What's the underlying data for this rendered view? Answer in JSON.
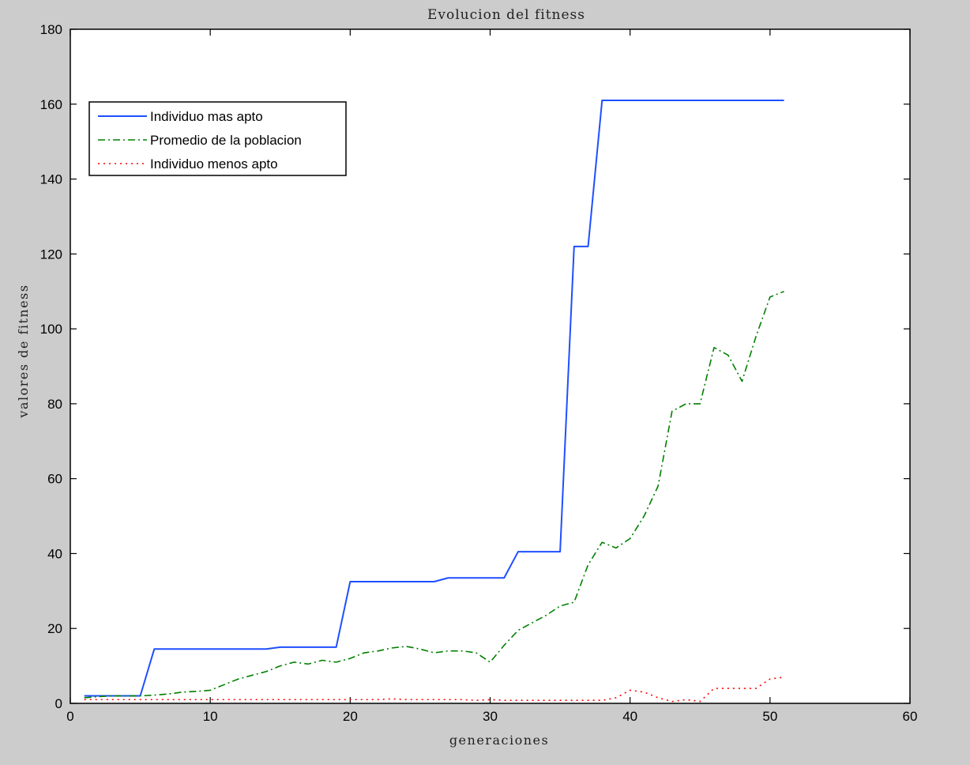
{
  "chart_data": {
    "type": "line",
    "title": "Evolucion del fitness",
    "xlabel": "generaciones",
    "ylabel": "valores de fitness",
    "xlim": [
      0,
      60
    ],
    "ylim": [
      0,
      180
    ],
    "xticks": [
      0,
      10,
      20,
      30,
      40,
      50,
      60
    ],
    "yticks": [
      0,
      20,
      40,
      60,
      80,
      100,
      120,
      140,
      160,
      180
    ],
    "grid": false,
    "legend_position": "top-left",
    "background_color": "#cccccc",
    "plot_background_color": "#ffffff",
    "series": [
      {
        "name": "Individuo mas apto",
        "color": "#1f4fff",
        "style": "solid",
        "x": [
          1,
          2,
          3,
          4,
          5,
          6,
          7,
          8,
          9,
          10,
          11,
          12,
          13,
          14,
          15,
          16,
          17,
          18,
          19,
          20,
          21,
          22,
          23,
          24,
          25,
          26,
          27,
          28,
          29,
          30,
          31,
          32,
          33,
          34,
          35,
          36,
          37,
          38,
          39,
          40,
          41,
          42,
          43,
          44,
          45,
          46,
          47,
          48,
          49,
          50,
          51
        ],
        "y": [
          2,
          2,
          2,
          2,
          2,
          14.5,
          14.5,
          14.5,
          14.5,
          14.5,
          14.5,
          14.5,
          14.5,
          14.5,
          15,
          15,
          15,
          15,
          15,
          32.5,
          32.5,
          32.5,
          32.5,
          32.5,
          32.5,
          32.5,
          33.5,
          33.5,
          33.5,
          33.5,
          33.5,
          40.5,
          40.5,
          40.5,
          40.5,
          122,
          122,
          161,
          161,
          161,
          161,
          161,
          161,
          161,
          161,
          161,
          161,
          161,
          161,
          161,
          161
        ]
      },
      {
        "name": "Promedio de la poblacion",
        "color": "#008000",
        "style": "dashdot",
        "x": [
          1,
          2,
          3,
          4,
          5,
          6,
          7,
          8,
          9,
          10,
          11,
          12,
          13,
          14,
          15,
          16,
          17,
          18,
          19,
          20,
          21,
          22,
          23,
          24,
          25,
          26,
          27,
          28,
          29,
          30,
          31,
          32,
          33,
          34,
          35,
          36,
          37,
          38,
          39,
          40,
          41,
          42,
          43,
          44,
          45,
          46,
          47,
          48,
          49,
          50,
          51
        ],
        "y": [
          1.5,
          1.8,
          2,
          2,
          2,
          2.2,
          2.5,
          3,
          3.2,
          3.5,
          5,
          6.5,
          7.5,
          8.5,
          10,
          11,
          10.5,
          11.5,
          11,
          12,
          13.5,
          14,
          14.8,
          15.2,
          14.5,
          13.5,
          14,
          14,
          13.5,
          11,
          15.5,
          19.5,
          21.5,
          23.5,
          26,
          27,
          37,
          43,
          41.5,
          44,
          50,
          58,
          78,
          80,
          80,
          95,
          93,
          86,
          98,
          108.5,
          110
        ]
      },
      {
        "name": "Individuo menos apto",
        "color": "#ff0000",
        "style": "dotted",
        "x": [
          1,
          2,
          3,
          4,
          5,
          6,
          7,
          8,
          9,
          10,
          11,
          12,
          13,
          14,
          15,
          16,
          17,
          18,
          19,
          20,
          21,
          22,
          23,
          24,
          25,
          26,
          27,
          28,
          29,
          30,
          31,
          32,
          33,
          34,
          35,
          36,
          37,
          38,
          39,
          40,
          41,
          42,
          43,
          44,
          45,
          46,
          47,
          48,
          49,
          50,
          51
        ],
        "y": [
          1,
          1,
          1,
          1,
          1,
          1,
          1,
          1,
          1,
          1,
          1,
          1,
          1,
          1,
          1,
          1,
          1,
          1,
          1,
          1,
          1,
          1,
          1.2,
          1,
          1,
          1,
          1,
          1,
          0.8,
          1,
          0.8,
          0.8,
          0.8,
          0.8,
          0.8,
          0.8,
          0.8,
          0.8,
          1.5,
          3.5,
          3,
          1.5,
          0.5,
          1,
          0.5,
          4,
          4,
          4,
          4,
          6.5,
          7
        ]
      }
    ]
  }
}
